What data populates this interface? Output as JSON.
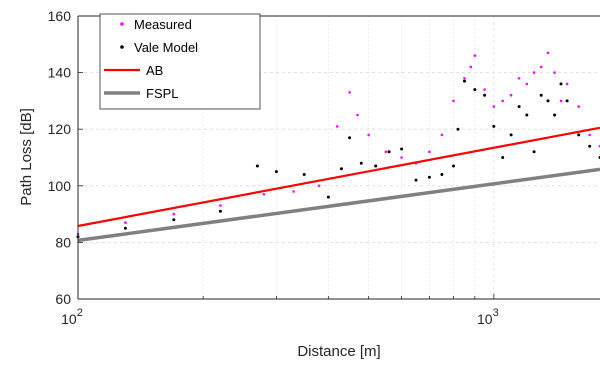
{
  "chart_data": {
    "type": "scatter",
    "title": "",
    "xlabel": "Distance [m]",
    "ylabel": "Path Loss [dB]",
    "xscale": "log",
    "xlim": [
      100,
      1800
    ],
    "ylim": [
      60,
      160
    ],
    "x_ticks": [
      100,
      1000
    ],
    "x_tick_labels": [
      {
        "base": "10",
        "exp": "2"
      },
      {
        "base": "10",
        "exp": "3"
      }
    ],
    "y_ticks": [
      60,
      80,
      100,
      120,
      140,
      160
    ],
    "y_tick_labels": [
      "60",
      "80",
      "100",
      "120",
      "140",
      "160"
    ],
    "grid": true,
    "legend_position": "top-left",
    "series": [
      {
        "name": "Measured",
        "kind": "points",
        "color": "#ff00ff",
        "x": [
          100,
          130,
          170,
          220,
          280,
          330,
          380,
          420,
          450,
          470,
          500,
          550,
          600,
          650,
          700,
          750,
          800,
          850,
          880,
          900,
          950,
          1000,
          1050,
          1100,
          1150,
          1200,
          1250,
          1300,
          1350,
          1400,
          1450,
          1500,
          1600,
          1700,
          1800
        ],
        "y": [
          83,
          87,
          90,
          93,
          97,
          98,
          100,
          121,
          133,
          125,
          118,
          112,
          110,
          108,
          112,
          118,
          130,
          138,
          142,
          146,
          134,
          128,
          130,
          132,
          138,
          136,
          140,
          142,
          147,
          140,
          130,
          136,
          128,
          118,
          114
        ]
      },
      {
        "name": "Vale Model",
        "kind": "points",
        "color": "#000000",
        "x": [
          100,
          130,
          170,
          220,
          270,
          300,
          350,
          400,
          430,
          450,
          480,
          520,
          560,
          600,
          650,
          700,
          750,
          800,
          820,
          850,
          900,
          950,
          1000,
          1050,
          1100,
          1150,
          1200,
          1250,
          1300,
          1350,
          1400,
          1450,
          1500,
          1600,
          1700,
          1800
        ],
        "y": [
          82,
          85,
          88,
          91,
          107,
          105,
          104,
          96,
          106,
          117,
          108,
          107,
          112,
          113,
          102,
          103,
          104,
          107,
          120,
          137,
          134,
          132,
          121,
          110,
          118,
          128,
          125,
          112,
          132,
          130,
          125,
          136,
          130,
          118,
          114,
          110
        ]
      },
      {
        "name": "AB",
        "kind": "line",
        "color": "#ff0000",
        "x": [
          100,
          1800
        ],
        "y": [
          85.8,
          120.5
        ]
      },
      {
        "name": "FSPL",
        "kind": "line",
        "color": "#808080",
        "x": [
          100,
          1800
        ],
        "y": [
          80.7,
          105.8
        ]
      }
    ]
  }
}
